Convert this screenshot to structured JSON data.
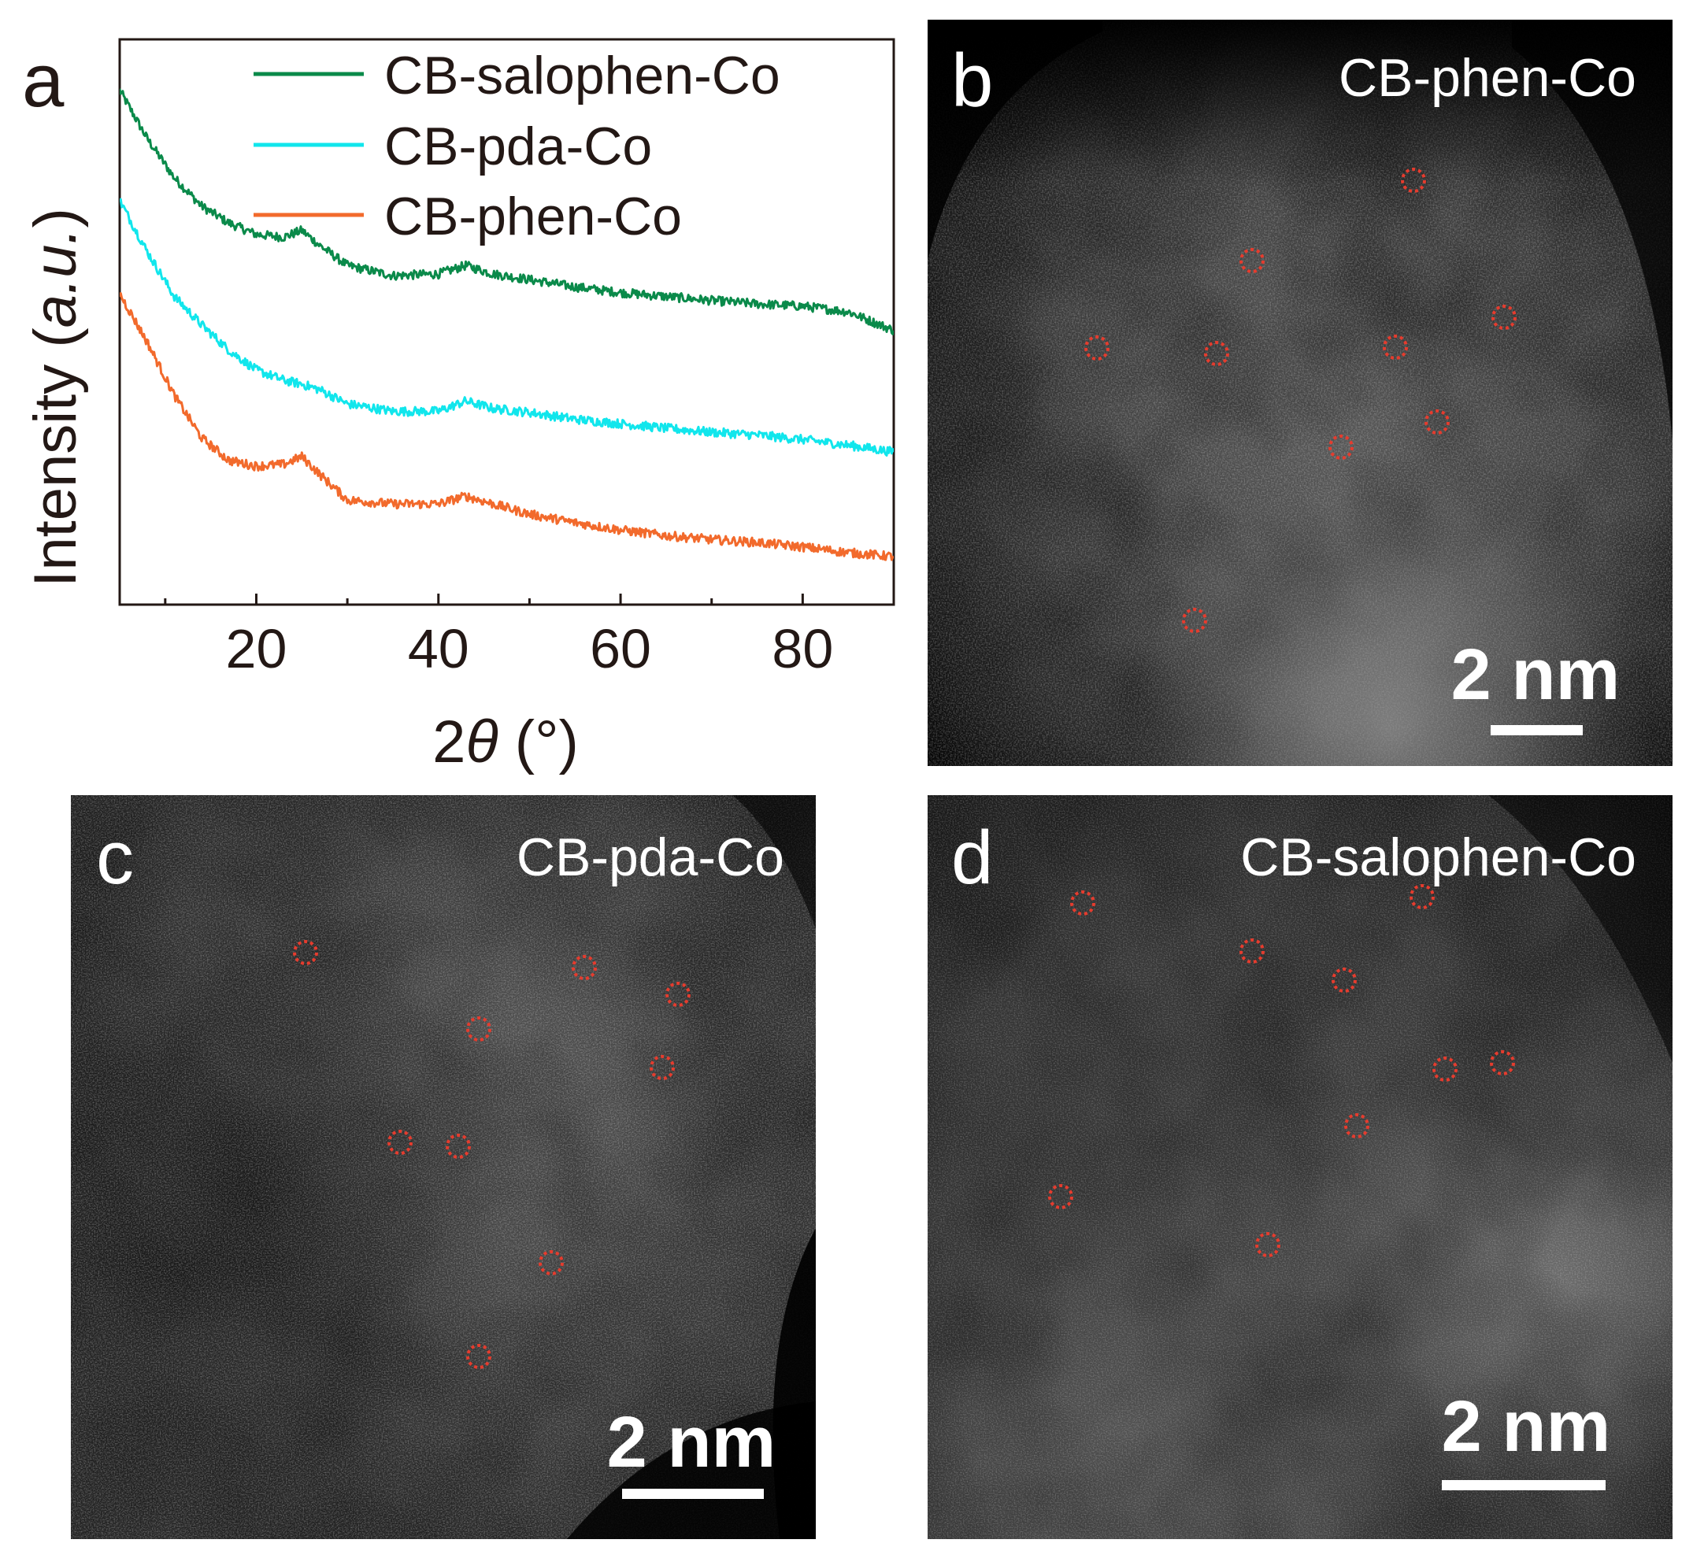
{
  "figure": {
    "panel_a": {
      "letter": "a"
    },
    "panel_b": {
      "letter": "b",
      "title": "CB-phen-Co",
      "scale_bar": "2 nm"
    },
    "panel_c": {
      "letter": "c",
      "title": "CB-pda-Co",
      "scale_bar": "2 nm"
    },
    "panel_d": {
      "letter": "d",
      "title": "CB-salophen-Co",
      "scale_bar": "2 nm"
    }
  },
  "chart_data": {
    "type": "line",
    "xlabel_prefix": "2",
    "xlabel_symbol": "θ",
    "xlabel_suffix": " (°)",
    "ylabel_prefix": "Intensity (",
    "ylabel_italic": "a.u.",
    "ylabel_suffix": ")",
    "xlim": [
      5,
      90
    ],
    "ylim": [
      0,
      10
    ],
    "x_ticks": [
      20,
      40,
      60,
      80
    ],
    "y_ticks_visible": false,
    "legend_position": "top-right",
    "series": [
      {
        "name": "CB-salophen-Co",
        "color": "#0a8a4a",
        "x": [
          5,
          8,
          11,
          14,
          17,
          20,
          23,
          25,
          27,
          30,
          35,
          40,
          43,
          46,
          50,
          55,
          60,
          65,
          70,
          75,
          80,
          85,
          90
        ],
        "y": [
          9.1,
          8.25,
          7.55,
          7.05,
          6.75,
          6.55,
          6.5,
          6.62,
          6.35,
          6.0,
          5.82,
          5.85,
          6.0,
          5.85,
          5.75,
          5.62,
          5.52,
          5.45,
          5.38,
          5.32,
          5.28,
          5.18,
          4.85
        ]
      },
      {
        "name": "CB-pda-Co",
        "color": "#11e6ec",
        "x": [
          5,
          8,
          11,
          14,
          17,
          20,
          23,
          25,
          27,
          30,
          35,
          40,
          43,
          46,
          50,
          55,
          60,
          65,
          70,
          75,
          80,
          85,
          90
        ],
        "y": [
          7.15,
          6.25,
          5.45,
          4.95,
          4.5,
          4.15,
          3.97,
          3.9,
          3.8,
          3.55,
          3.42,
          3.42,
          3.6,
          3.47,
          3.4,
          3.28,
          3.2,
          3.12,
          3.05,
          3.0,
          2.92,
          2.82,
          2.7
        ]
      },
      {
        "name": "CB-phen-Co",
        "color": "#f26a2c",
        "x": [
          5,
          8,
          11,
          14,
          17,
          20,
          23,
          25,
          27,
          30,
          35,
          40,
          43,
          46,
          50,
          55,
          60,
          65,
          70,
          75,
          80,
          85,
          90
        ],
        "y": [
          5.5,
          4.65,
          3.7,
          2.95,
          2.55,
          2.45,
          2.48,
          2.62,
          2.3,
          1.85,
          1.78,
          1.78,
          1.92,
          1.78,
          1.6,
          1.45,
          1.32,
          1.22,
          1.15,
          1.1,
          1.02,
          0.92,
          0.85
        ]
      }
    ]
  },
  "atom_markers": {
    "color": "#e53c2e",
    "panel_b_count": 10,
    "panel_c_count": 10,
    "panel_d_count": 10
  }
}
